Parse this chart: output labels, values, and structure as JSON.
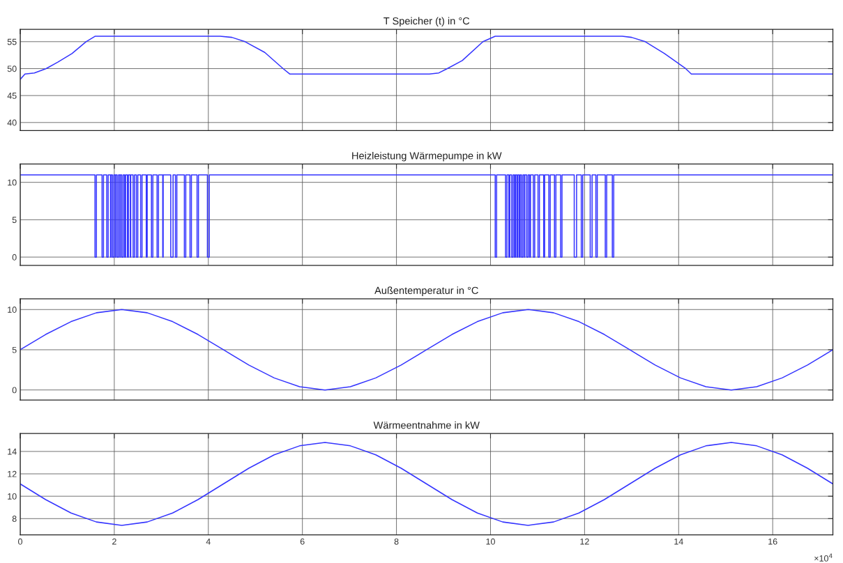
{
  "chart_data": [
    {
      "type": "line",
      "title": "T Speicher (t) in °C",
      "xlim": [
        0,
        17.28
      ],
      "xticks": [
        0,
        2,
        4,
        6,
        8,
        10,
        12,
        14,
        16
      ],
      "ylim": [
        38.5,
        57.3
      ],
      "yticks": [
        40,
        45,
        50,
        55
      ],
      "grid": true,
      "tick_labels": "y",
      "series": [
        {
          "color": "#3535ff",
          "x": [
            0,
            0.1,
            0.3,
            0.55,
            0.8,
            1.1,
            1.4,
            1.59,
            4.25,
            4.5,
            4.78,
            5.2,
            5.59,
            5.73,
            8.7,
            8.9,
            9.08,
            9.4,
            9.84,
            10.1,
            12.8,
            13.0,
            13.29,
            13.7,
            14.15,
            14.27,
            17.28
          ],
          "values": [
            48,
            49,
            49.2,
            50,
            51.2,
            52.8,
            55,
            56,
            56,
            55.8,
            55,
            53,
            50,
            49,
            49,
            49.2,
            50,
            51.5,
            55,
            56,
            56,
            55.8,
            55,
            52.8,
            50,
            49,
            49
          ]
        }
      ]
    },
    {
      "type": "step",
      "title": "Heizleistung Wärmepumpe in kW",
      "xlim": [
        0,
        17.28
      ],
      "xticks": [
        0,
        2,
        4,
        6,
        8,
        10,
        12,
        14,
        16
      ],
      "ylim": [
        -1.1,
        12.45
      ],
      "yticks": [
        0,
        5,
        10
      ],
      "grid": true,
      "tick_labels": "y",
      "series": [
        {
          "color": "#3535ff",
          "x": [
            0,
            1.59,
            1.62,
            1.74,
            1.77,
            1.84,
            1.87,
            1.92,
            1.93,
            1.96,
            1.99,
            2.02,
            2.03,
            2.06,
            2.09,
            2.12,
            2.13,
            2.16,
            2.19,
            2.22,
            2.24,
            2.28,
            2.3,
            2.34,
            2.35,
            2.4,
            2.43,
            2.47,
            2.5,
            2.56,
            2.59,
            2.68,
            2.7,
            2.79,
            2.82,
            2.91,
            2.94,
            3.03,
            3.04,
            3.2,
            3.25,
            3.3,
            3.33,
            3.49,
            3.52,
            3.61,
            3.64,
            3.76,
            3.79,
            3.98,
            4.02,
            10.1,
            10.13,
            10.32,
            10.35,
            10.39,
            10.41,
            10.45,
            10.48,
            10.51,
            10.53,
            10.56,
            10.58,
            10.61,
            10.63,
            10.66,
            10.69,
            10.72,
            10.73,
            10.77,
            10.8,
            10.83,
            10.85,
            10.91,
            10.94,
            11.01,
            11.04,
            11.13,
            11.15,
            11.24,
            11.27,
            11.36,
            11.39,
            11.49,
            11.52,
            11.78,
            11.83,
            11.93,
            11.96,
            12.12,
            12.16,
            12.24,
            12.27,
            12.44,
            12.47,
            12.59,
            12.62,
            17.28
          ],
          "values": [
            11,
            0,
            11,
            0,
            11,
            0,
            11,
            0,
            11,
            0,
            11,
            0,
            11,
            0,
            11,
            0,
            11,
            0,
            11,
            0,
            11,
            0,
            11,
            0,
            11,
            0,
            11,
            0,
            11,
            0,
            11,
            0,
            11,
            0,
            11,
            0,
            11,
            0,
            11,
            0,
            11,
            0,
            11,
            0,
            11,
            0,
            11,
            0,
            11,
            0,
            11,
            0,
            11,
            0,
            11,
            0,
            11,
            0,
            11,
            0,
            11,
            0,
            11,
            0,
            11,
            0,
            11,
            0,
            11,
            0,
            11,
            0,
            11,
            0,
            11,
            0,
            11,
            0,
            11,
            0,
            11,
            0,
            11,
            0,
            11,
            0,
            11,
            0,
            11,
            0,
            11,
            0,
            11,
            0,
            11,
            0,
            11,
            11
          ]
        }
      ]
    },
    {
      "type": "line",
      "title": "Außentemperatur in °C",
      "xlim": [
        0,
        17.28
      ],
      "xticks": [
        0,
        2,
        4,
        6,
        8,
        10,
        12,
        14,
        16
      ],
      "ylim": [
        -1.26,
        11.34
      ],
      "yticks": [
        0,
        5,
        10
      ],
      "grid": true,
      "tick_labels": "y",
      "series": [
        {
          "color": "#3535ff",
          "x": [
            0,
            0.54,
            1.08,
            1.62,
            2.16,
            2.7,
            3.24,
            3.78,
            4.32,
            4.86,
            5.4,
            5.94,
            6.48,
            7.02,
            7.56,
            8.1,
            8.64,
            9.18,
            9.72,
            10.26,
            10.8,
            11.34,
            11.88,
            12.42,
            12.96,
            13.5,
            14.04,
            14.58,
            15.12,
            15.66,
            16.2,
            16.74,
            17.28
          ],
          "values": [
            5,
            6.9,
            8.5,
            9.6,
            10,
            9.6,
            8.5,
            6.9,
            5,
            3.1,
            1.5,
            0.4,
            0,
            0.4,
            1.5,
            3.1,
            5,
            6.9,
            8.5,
            9.6,
            10,
            9.6,
            8.5,
            6.9,
            5,
            3.1,
            1.5,
            0.4,
            0,
            0.4,
            1.5,
            3.1,
            5
          ]
        }
      ]
    },
    {
      "type": "line",
      "title": "Wärmeentnahme in kW",
      "xlim": [
        0,
        17.28
      ],
      "xticks": [
        0,
        2,
        4,
        6,
        8,
        10,
        12,
        14,
        16
      ],
      "ylim": [
        6.55,
        15.6
      ],
      "yticks": [
        8,
        10,
        12,
        14
      ],
      "grid": true,
      "annotations": [
        "×10$^{4}$"
      ],
      "series": [
        {
          "color": "#3535ff",
          "x": [
            0,
            0.54,
            1.08,
            1.62,
            2.16,
            2.7,
            3.24,
            3.78,
            4.32,
            4.86,
            5.4,
            5.94,
            6.48,
            7.02,
            7.56,
            8.1,
            8.64,
            9.18,
            9.72,
            10.26,
            10.8,
            11.34,
            11.88,
            12.42,
            12.96,
            13.5,
            14.04,
            14.58,
            15.12,
            15.66,
            16.2,
            16.74,
            17.28
          ],
          "values": [
            11.1,
            9.7,
            8.5,
            7.7,
            7.4,
            7.7,
            8.5,
            9.7,
            11.1,
            12.5,
            13.7,
            14.5,
            14.8,
            14.5,
            13.7,
            12.5,
            11.1,
            9.7,
            8.5,
            7.7,
            7.4,
            7.7,
            8.5,
            9.7,
            11.1,
            12.5,
            13.7,
            14.5,
            14.8,
            14.5,
            13.7,
            12.5,
            11.1
          ]
        }
      ]
    }
  ]
}
